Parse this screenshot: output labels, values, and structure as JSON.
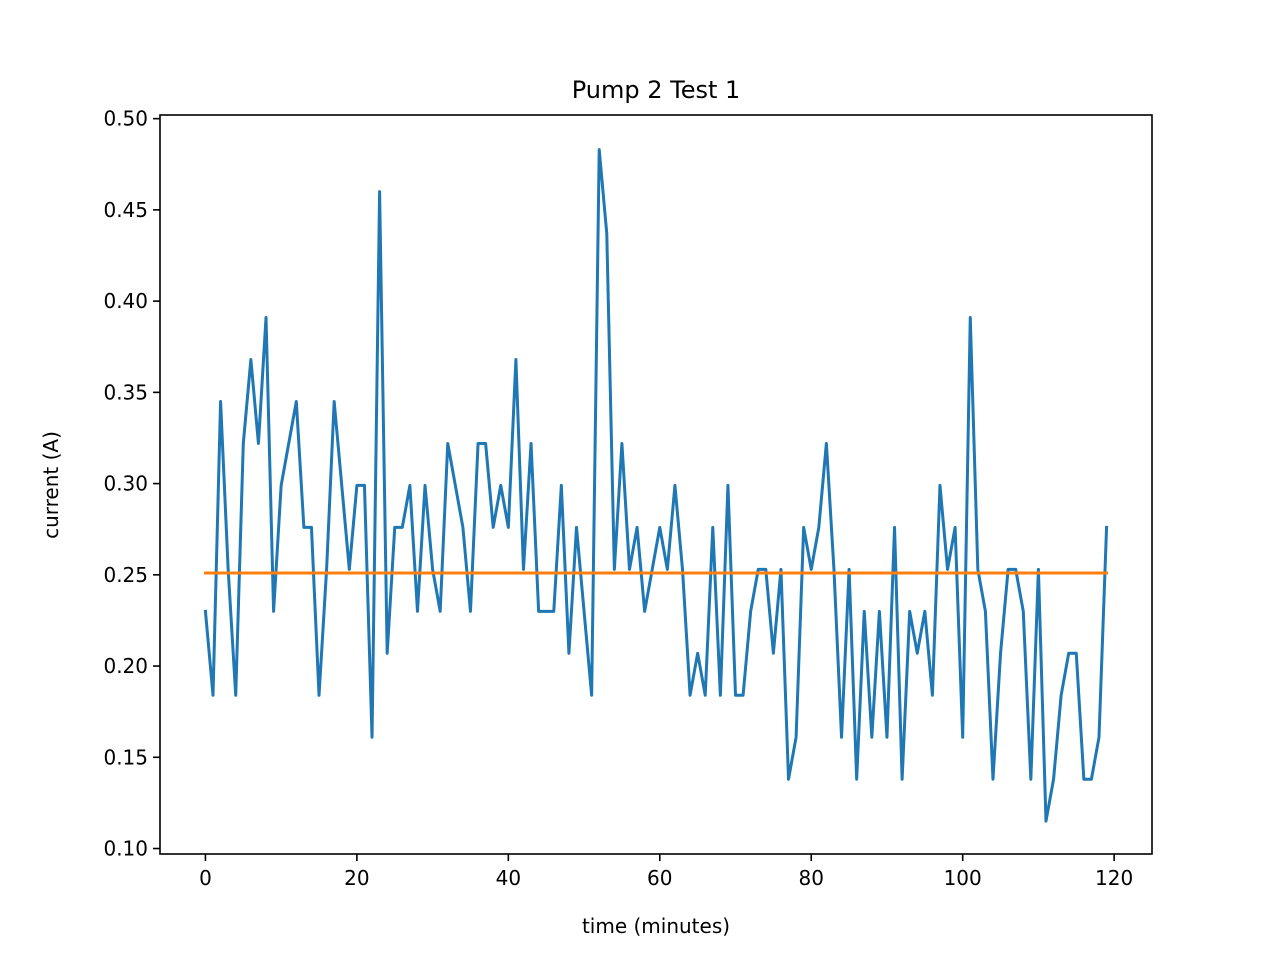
{
  "chart_data": {
    "type": "line",
    "title": "Pump 2 Test 1",
    "xlabel": "time (minutes)",
    "ylabel": "current (A)",
    "xlim": [
      -6,
      125
    ],
    "ylim": [
      0.097,
      0.502
    ],
    "xticks": [
      0,
      20,
      40,
      60,
      80,
      100,
      120
    ],
    "yticks": [
      0.1,
      0.15,
      0.2,
      0.25,
      0.3,
      0.35,
      0.4,
      0.45,
      0.5
    ],
    "grid": false,
    "legend": "none",
    "series": [
      {
        "color": "#1f77b4",
        "x": [
          0,
          1,
          2,
          3,
          4,
          5,
          6,
          7,
          8,
          9,
          10,
          11,
          12,
          13,
          14,
          15,
          16,
          17,
          18,
          19,
          20,
          21,
          22,
          23,
          24,
          25,
          26,
          27,
          28,
          29,
          30,
          31,
          32,
          33,
          34,
          35,
          36,
          37,
          38,
          39,
          40,
          41,
          42,
          43,
          44,
          45,
          46,
          47,
          48,
          49,
          50,
          51,
          52,
          53,
          54,
          55,
          56,
          57,
          58,
          59,
          60,
          61,
          62,
          63,
          64,
          65,
          66,
          67,
          68,
          69,
          70,
          71,
          72,
          73,
          74,
          75,
          76,
          77,
          78,
          79,
          80,
          81,
          82,
          83,
          84,
          85,
          86,
          87,
          88,
          89,
          90,
          91,
          92,
          93,
          94,
          95,
          96,
          97,
          98,
          99,
          100,
          101,
          102,
          103,
          104,
          105,
          106,
          107,
          108,
          109,
          110,
          111,
          112,
          113,
          114,
          115,
          116,
          117,
          118,
          119
        ],
        "values": [
          0.23,
          0.184,
          0.345,
          0.253,
          0.184,
          0.322,
          0.368,
          0.322,
          0.391,
          0.23,
          0.299,
          0.322,
          0.345,
          0.276,
          0.276,
          0.184,
          0.253,
          0.345,
          0.299,
          0.253,
          0.299,
          0.299,
          0.161,
          0.46,
          0.207,
          0.276,
          0.276,
          0.299,
          0.23,
          0.299,
          0.253,
          0.23,
          0.322,
          0.299,
          0.276,
          0.23,
          0.322,
          0.322,
          0.276,
          0.299,
          0.276,
          0.368,
          0.253,
          0.322,
          0.23,
          0.23,
          0.23,
          0.299,
          0.207,
          0.276,
          0.23,
          0.184,
          0.483,
          0.437,
          0.253,
          0.322,
          0.253,
          0.276,
          0.23,
          0.253,
          0.276,
          0.253,
          0.299,
          0.253,
          0.184,
          0.207,
          0.184,
          0.276,
          0.184,
          0.299,
          0.184,
          0.184,
          0.23,
          0.253,
          0.253,
          0.207,
          0.253,
          0.138,
          0.161,
          0.276,
          0.253,
          0.276,
          0.322,
          0.253,
          0.161,
          0.253,
          0.138,
          0.23,
          0.161,
          0.23,
          0.161,
          0.276,
          0.138,
          0.23,
          0.207,
          0.23,
          0.184,
          0.299,
          0.253,
          0.276,
          0.161,
          0.391,
          0.253,
          0.23,
          0.138,
          0.207,
          0.253,
          0.253,
          0.23,
          0.138,
          0.253,
          0.115,
          0.138,
          0.184,
          0.207,
          0.207,
          0.138,
          0.138,
          0.161,
          0.276
        ]
      },
      {
        "color": "#ff7f0e",
        "x": [
          0,
          119
        ],
        "values": [
          0.251,
          0.251
        ]
      }
    ]
  }
}
